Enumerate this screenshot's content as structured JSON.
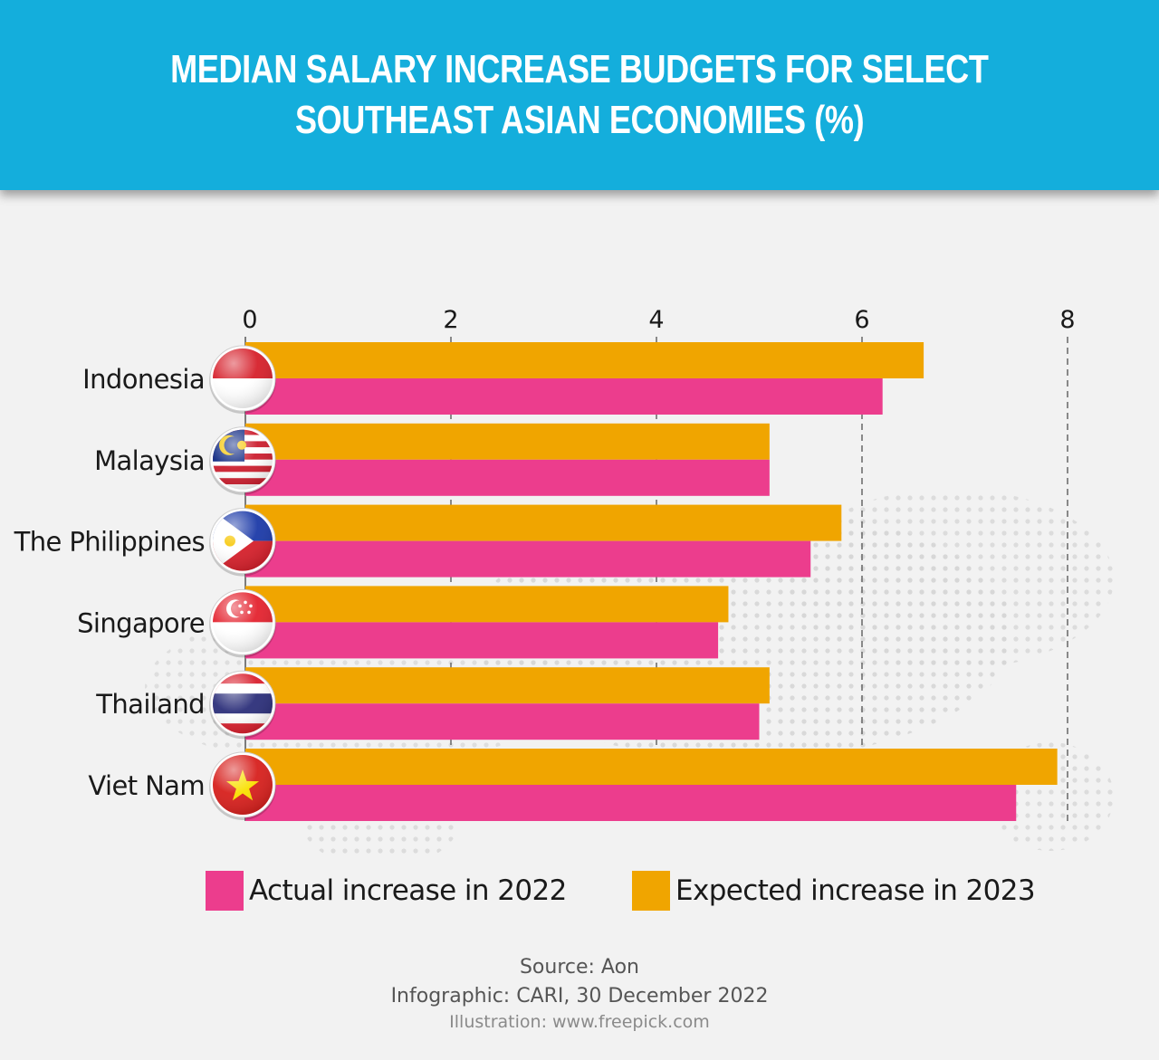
{
  "title_lines": [
    "MEDIAN SALARY INCREASE BUDGETS FOR SELECT",
    "SOUTHEAST ASIAN ECONOMIES (%)"
  ],
  "colors": {
    "header": "#14aedc",
    "actual_2022": "#ec3d8d",
    "expected_2023": "#f0a500"
  },
  "chart_data": {
    "type": "bar",
    "orientation": "horizontal",
    "title": "MEDIAN SALARY INCREASE BUDGETS FOR SELECT SOUTHEAST ASIAN ECONOMIES (%)",
    "categories": [
      "Indonesia",
      "Malaysia",
      "The Philippines",
      "Singapore",
      "Thailand",
      "Viet Nam"
    ],
    "series": [
      {
        "name": "Expected increase in 2023",
        "values": [
          6.6,
          5.1,
          5.8,
          4.7,
          5.1,
          7.9
        ]
      },
      {
        "name": "Actual increase in 2022",
        "values": [
          6.2,
          5.1,
          5.5,
          4.6,
          5.0,
          7.5
        ]
      }
    ],
    "xlim": [
      0,
      8
    ],
    "xticks": [
      "0",
      "2",
      "4",
      "6",
      "8"
    ],
    "grid": "dashed vertical",
    "legend": "bottom"
  },
  "legend": {
    "actual_label": "Actual increase in 2022",
    "expected_label": "Expected increase in 2023"
  },
  "footer": {
    "source": "Source: Aon",
    "infographic": "Infographic: CARI, 30 December 2022",
    "illustration": "Illustration: www.freepick.com"
  }
}
